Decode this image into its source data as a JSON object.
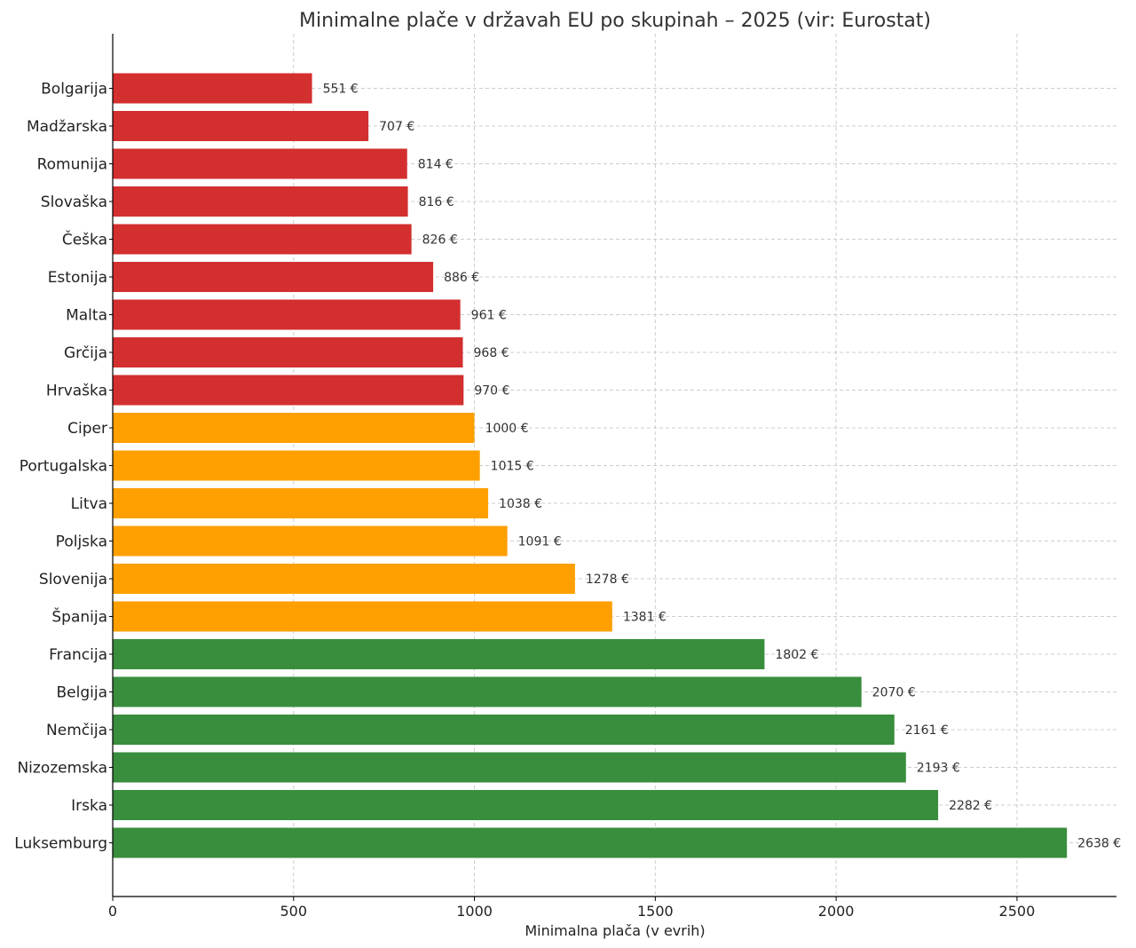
{
  "chart_data": {
    "type": "bar",
    "orientation": "horizontal",
    "title": "Minimalne plače v državah EU po skupinah – 2025 (vir: Eurostat)",
    "xlabel": "Minimalna plača (v evrih)",
    "ylabel": "",
    "xlim": [
      0,
      2775
    ],
    "xticks": [
      0,
      500,
      1000,
      1500,
      2000,
      2500
    ],
    "grid": true,
    "value_suffix": " €",
    "group_colors": {
      "low": "#d32f2f",
      "mid": "#ffa000",
      "high": "#388e3c"
    },
    "bars": [
      {
        "country": "Bolgarija",
        "value": 551,
        "group": "low"
      },
      {
        "country": "Madžarska",
        "value": 707,
        "group": "low"
      },
      {
        "country": "Romunija",
        "value": 814,
        "group": "low"
      },
      {
        "country": "Slovaška",
        "value": 816,
        "group": "low"
      },
      {
        "country": "Češka",
        "value": 826,
        "group": "low"
      },
      {
        "country": "Estonija",
        "value": 886,
        "group": "low"
      },
      {
        "country": "Malta",
        "value": 961,
        "group": "low"
      },
      {
        "country": "Grčija",
        "value": 968,
        "group": "low"
      },
      {
        "country": "Hrvaška",
        "value": 970,
        "group": "low"
      },
      {
        "country": "Ciper",
        "value": 1000,
        "group": "mid"
      },
      {
        "country": "Portugalska",
        "value": 1015,
        "group": "mid"
      },
      {
        "country": "Litva",
        "value": 1038,
        "group": "mid"
      },
      {
        "country": "Poljska",
        "value": 1091,
        "group": "mid"
      },
      {
        "country": "Slovenija",
        "value": 1278,
        "group": "mid"
      },
      {
        "country": "Španija",
        "value": 1381,
        "group": "mid"
      },
      {
        "country": "Francija",
        "value": 1802,
        "group": "high"
      },
      {
        "country": "Belgija",
        "value": 2070,
        "group": "high"
      },
      {
        "country": "Nemčija",
        "value": 2161,
        "group": "high"
      },
      {
        "country": "Nizozemska",
        "value": 2193,
        "group": "high"
      },
      {
        "country": "Irska",
        "value": 2282,
        "group": "high"
      },
      {
        "country": "Luksemburg",
        "value": 2638,
        "group": "high"
      }
    ]
  }
}
